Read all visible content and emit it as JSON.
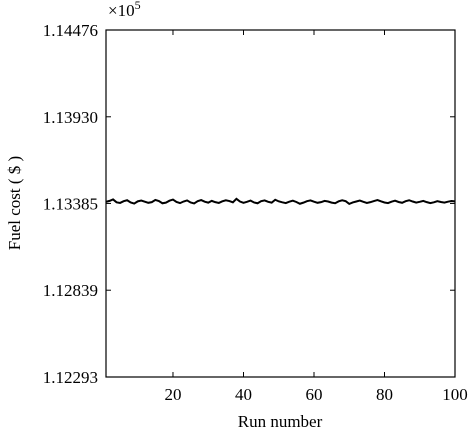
{
  "chart_data": {
    "type": "line",
    "x_label": "Run number",
    "y_label": "Fuel cost ( $ )",
    "multiplier": {
      "base": "×10",
      "exponent": "5"
    },
    "xlim": [
      1,
      100
    ],
    "xticks": [
      20,
      40,
      60,
      80,
      100
    ],
    "ylim": [
      1.12293,
      1.14476
    ],
    "yticks": [
      1.12293,
      1.12839,
      1.13385,
      {
        "value": 1.1393,
        "label": "1.13930"
      },
      1.14476
    ],
    "x": [
      1,
      2,
      3,
      4,
      5,
      6,
      7,
      8,
      9,
      10,
      11,
      12,
      13,
      14,
      15,
      16,
      17,
      18,
      19,
      20,
      21,
      22,
      23,
      24,
      25,
      26,
      27,
      28,
      29,
      30,
      31,
      32,
      33,
      34,
      35,
      36,
      37,
      38,
      39,
      40,
      41,
      42,
      43,
      44,
      45,
      46,
      47,
      48,
      49,
      50,
      51,
      52,
      53,
      54,
      55,
      56,
      57,
      58,
      59,
      60,
      61,
      62,
      63,
      64,
      65,
      66,
      67,
      68,
      69,
      70,
      71,
      72,
      73,
      74,
      75,
      76,
      77,
      78,
      79,
      80,
      81,
      82,
      83,
      84,
      85,
      86,
      87,
      88,
      89,
      90,
      91,
      92,
      93,
      94,
      95,
      96,
      97,
      98,
      99,
      100
    ],
    "series": [
      {
        "color": "#000000",
        "values": [
          1.13395,
          1.13401,
          1.1341,
          1.13392,
          1.13388,
          1.13399,
          1.13405,
          1.13391,
          1.13384,
          1.13398,
          1.13403,
          1.13396,
          1.13389,
          1.13393,
          1.13407,
          1.134,
          1.13386,
          1.1339,
          1.13402,
          1.13409,
          1.13394,
          1.13387,
          1.13397,
          1.13404,
          1.13391,
          1.13385,
          1.13399,
          1.13406,
          1.13396,
          1.1339,
          1.13401,
          1.13393,
          1.13388,
          1.13398,
          1.13405,
          1.134,
          1.13392,
          1.13414,
          1.13397,
          1.13389,
          1.13395,
          1.13403,
          1.13391,
          1.13386,
          1.13399,
          1.13404,
          1.13395,
          1.1339,
          1.13408,
          1.13398,
          1.13392,
          1.13387,
          1.13396,
          1.13402,
          1.13394,
          1.13383,
          1.1339,
          1.13399,
          1.13404,
          1.13396,
          1.13389,
          1.13393,
          1.13401,
          1.13397,
          1.1339,
          1.13386,
          1.13398,
          1.13405,
          1.13399,
          1.13382,
          1.13391,
          1.13397,
          1.13403,
          1.13395,
          1.13388,
          1.13393,
          1.134,
          1.13406,
          1.13398,
          1.13391,
          1.13387,
          1.13396,
          1.13402,
          1.13394,
          1.13389,
          1.13399,
          1.13405,
          1.13397,
          1.1339,
          1.13395,
          1.13401,
          1.13393,
          1.13387,
          1.13392,
          1.13399,
          1.13394,
          1.1339,
          1.13396,
          1.134,
          1.13398
        ]
      }
    ]
  }
}
